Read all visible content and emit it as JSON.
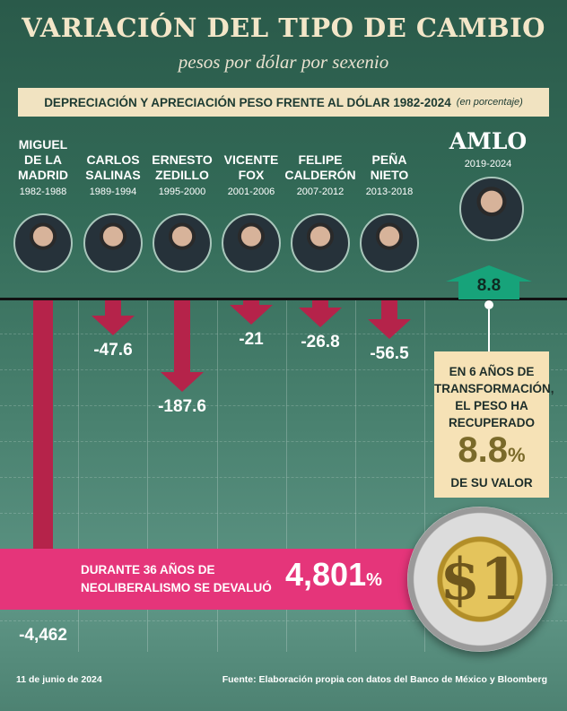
{
  "header": {
    "title": "VARIACIÓN DEL TIPO DE CAMBIO",
    "subtitle": "pesos por dólar por sexenio",
    "banner_main": "DEPRECIACIÓN Y APRECIACIÓN PESO FRENTE AL DÓLAR 1982-2024",
    "banner_note": "(en porcentaje)"
  },
  "chart_data": {
    "type": "bar",
    "categories": [
      "MIGUEL DE LA MADRID",
      "CARLOS SALINAS",
      "ERNESTO ZEDILLO",
      "VICENTE FOX",
      "FELIPE CALDERÓN",
      "PEÑA NIETO",
      "AMLO"
    ],
    "periods": [
      "1982-1988",
      "1989-1994",
      "1995-2000",
      "2001-2006",
      "2007-2012",
      "2013-2018",
      "2019-2024"
    ],
    "values": [
      -4462,
      -47.6,
      -187.6,
      -21,
      -26.8,
      -56.5,
      8.8
    ],
    "value_labels": [
      "-4,462",
      "-47.6",
      "-187.6",
      "-21",
      "-26.8",
      "-56.5",
      "8.8"
    ],
    "colors": {
      "negative": "#b5234a",
      "positive": "#17a37a"
    }
  },
  "presidents": [
    {
      "name": "MIGUEL\nDE LA\nMADRID",
      "years": "1982-1988"
    },
    {
      "name": "CARLOS\nSALINAS",
      "years": "1989-1994"
    },
    {
      "name": "ERNESTO\nZEDILLO",
      "years": "1995-2000"
    },
    {
      "name": "VICENTE\nFOX",
      "years": "2001-2006"
    },
    {
      "name": "FELIPE\nCALDERÓN",
      "years": "2007-2012"
    },
    {
      "name": "PEÑA\nNIETO",
      "years": "2013-2018"
    }
  ],
  "amlo": {
    "name": "AMLO",
    "years": "2019-2024",
    "box_line1": "EN 6 AÑOS DE TRANSFORMACIÓN, EL PESO HA RECUPERADO",
    "box_value": "8.8",
    "box_unit": "%",
    "box_line2": "DE SU VALOR"
  },
  "neoliberal": {
    "text": "DURANTE 36 AÑOS DE NEOLIBERALISMO SE DEVALUÓ",
    "value": "4,801",
    "unit": "%"
  },
  "coin": {
    "label": "$1"
  },
  "footer": {
    "date": "11 de junio de 2024",
    "source": "Fuente: Elaboración propia con datos del Banco de México y Bloomberg"
  }
}
